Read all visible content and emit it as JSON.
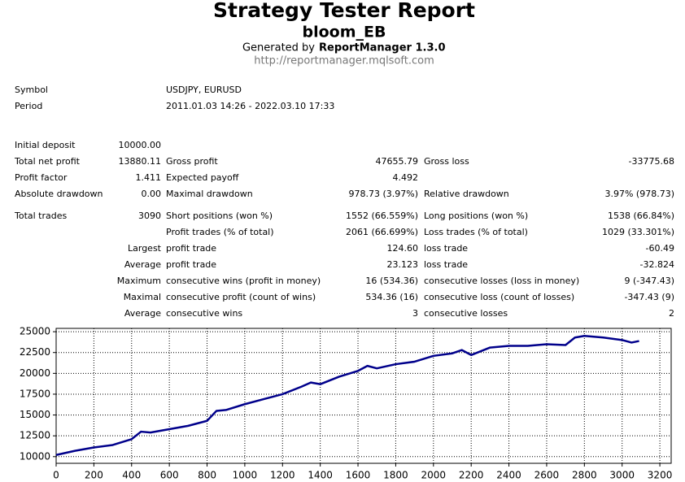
{
  "header": {
    "title": "Strategy Tester Report",
    "subtitle": "bloom_EB",
    "generated_prefix": "Generated by",
    "generator": "ReportManager 1.3.0",
    "url": "http://reportmanager.mqlsoft.com"
  },
  "info": [
    [
      "Symbol",
      "USDJPY, EURUSD"
    ],
    [
      "Period",
      "2011.01.03 14:26 - 2022.03.10 17:33"
    ]
  ],
  "stats": [
    [
      "Initial deposit",
      "10000.00",
      null,
      null,
      null,
      null
    ],
    [
      "Total net profit",
      "13880.11",
      "Gross profit",
      "47655.79",
      "Gross loss",
      "-33775.68"
    ],
    [
      "Profit factor",
      "1.411",
      "Expected payoff",
      "4.492",
      null,
      null
    ],
    [
      "Absolute drawdown",
      "0.00",
      "Maximal drawdown",
      "978.73 (3.97%)",
      "Relative drawdown",
      "3.97% (978.73)"
    ],
    [
      "Total trades",
      "3090",
      "Short positions (won %)",
      "1552 (66.559%)",
      "Long positions (won %)",
      "1538 (66.84%)"
    ],
    [
      null,
      null,
      "Profit trades (% of total)",
      "2061 (66.699%)",
      "Loss trades (% of total)",
      "1029 (33.301%)"
    ],
    [
      null,
      "Largest",
      "profit trade",
      "124.60",
      "loss trade",
      "-60.49"
    ],
    [
      null,
      "Average",
      "profit trade",
      "23.123",
      "loss trade",
      "-32.824"
    ],
    [
      null,
      "Maximum",
      "consecutive wins (profit in money)",
      "16 (534.36)",
      "consecutive losses (loss in money)",
      "9 (-347.43)"
    ],
    [
      null,
      "Maximal",
      "consecutive profit (count of wins)",
      "534.36 (16)",
      "consecutive loss (count of losses)",
      "-347.43 (9)"
    ],
    [
      null,
      "Average",
      "consecutive wins",
      "3",
      "consecutive losses",
      "2"
    ]
  ],
  "chart_data": {
    "type": "line",
    "x": [
      0,
      100,
      200,
      300,
      400,
      450,
      500,
      600,
      700,
      800,
      850,
      900,
      1000,
      1100,
      1200,
      1300,
      1350,
      1400,
      1500,
      1600,
      1650,
      1700,
      1800,
      1900,
      2000,
      2100,
      2150,
      2200,
      2300,
      2400,
      2500,
      2600,
      2700,
      2750,
      2800,
      2900,
      3000,
      3050,
      3090
    ],
    "series": [
      {
        "color": "#00008b",
        "values": [
          10200,
          10700,
          11100,
          11400,
          12100,
          13000,
          12900,
          13300,
          13700,
          14300,
          15500,
          15600,
          16300,
          16900,
          17500,
          18400,
          18900,
          18700,
          19600,
          20300,
          20900,
          20600,
          21100,
          21400,
          22100,
          22400,
          22800,
          22200,
          23100,
          23300,
          23300,
          23500,
          23400,
          24300,
          24500,
          24300,
          24000,
          23700,
          23880
        ]
      }
    ],
    "xlim": [
      0,
      3260
    ],
    "ylim": [
      9200,
      25400
    ],
    "xticks": [
      0,
      200,
      400,
      600,
      800,
      1000,
      1200,
      1400,
      1600,
      1800,
      2000,
      2200,
      2400,
      2600,
      2800,
      3000,
      3200
    ],
    "yticks": [
      10000,
      12500,
      15000,
      17500,
      20000,
      22500,
      25000
    ],
    "grid": true
  }
}
